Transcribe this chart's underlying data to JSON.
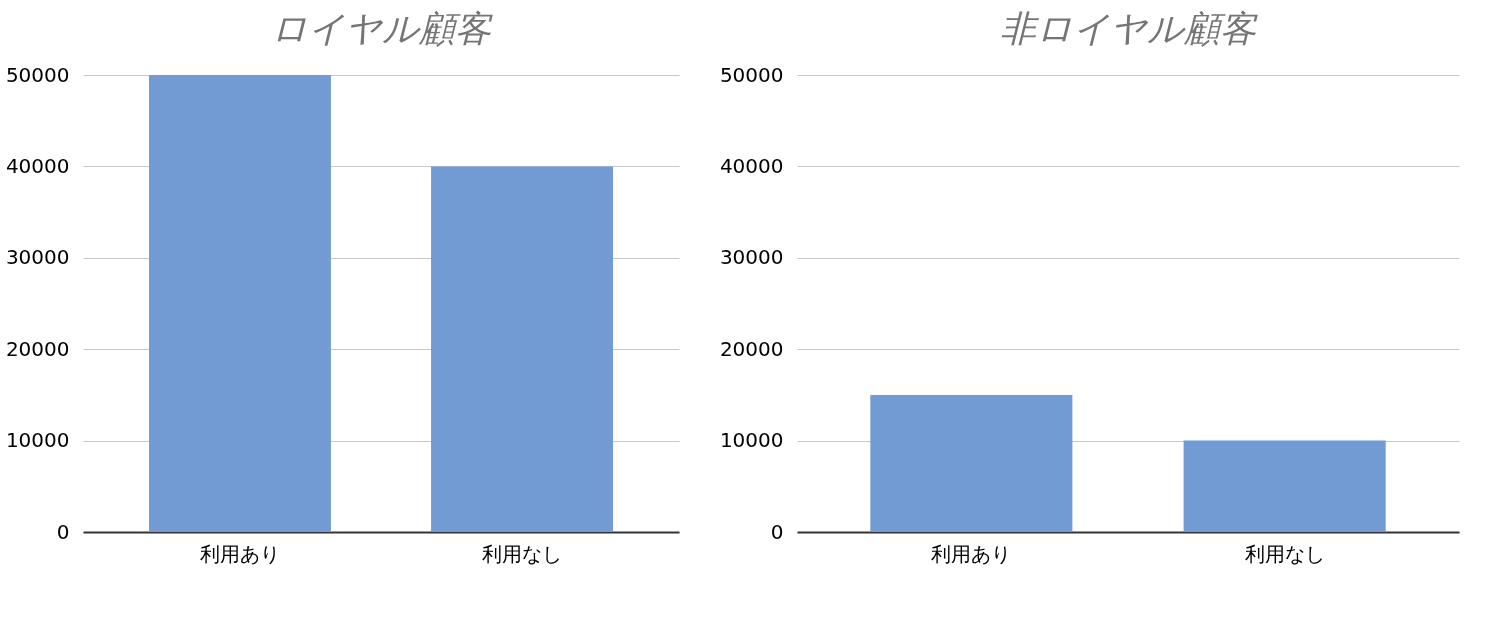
{
  "chart_data": [
    {
      "type": "bar",
      "title": "ロイヤル顧客",
      "categories": [
        "利用あり",
        "利用なし"
      ],
      "values": [
        50000,
        40000
      ],
      "color": "#729bd4",
      "ylim": [
        0,
        50000
      ],
      "yticks": [
        0,
        10000,
        20000,
        30000,
        40000,
        50000
      ],
      "grid": "y"
    },
    {
      "type": "bar",
      "title": "非ロイヤル顧客",
      "categories": [
        "利用あり",
        "利用なし"
      ],
      "values": [
        15000,
        10000
      ],
      "color": "#729bd4",
      "ylim": [
        0,
        50000
      ],
      "yticks": [
        0,
        10000,
        20000,
        30000,
        40000,
        50000
      ],
      "grid": "y"
    }
  ]
}
